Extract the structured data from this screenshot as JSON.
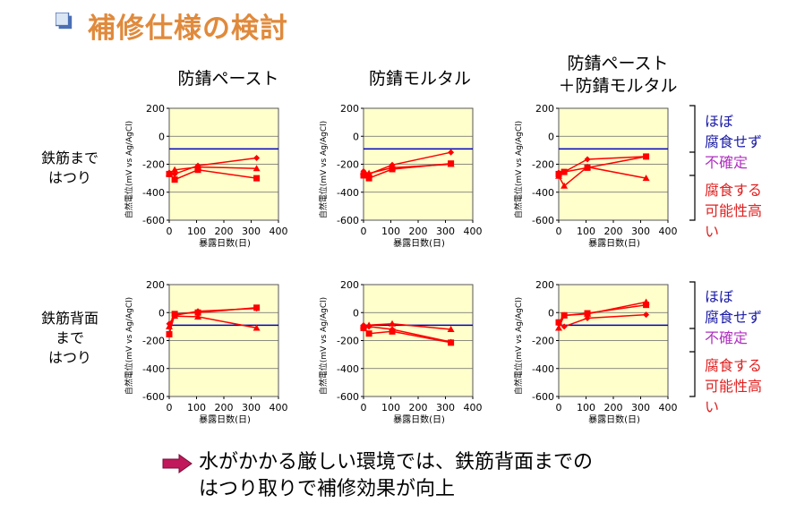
{
  "slide": {
    "title": "補修仕様の検討",
    "colors": {
      "title": "#e08a3c",
      "plot_bg": "#ffffcc",
      "threshold": "#0000c0",
      "series": "#ff0000",
      "legend_blue": "#1a1aa6",
      "legend_purple": "#b030c0",
      "legend_red": "#e02020",
      "arrow": "#c0185a"
    },
    "column_headers": [
      "防錆ペースト",
      "防錆モルタル",
      "防錆ペースト",
      "＋防錆モルタル"
    ],
    "row_headers": [
      {
        "lines": [
          "鉄筋まで",
          "はつり"
        ]
      },
      {
        "lines": [
          "鉄筋背面",
          "まで",
          "はつり"
        ]
      }
    ],
    "legend": {
      "no_corrosion": [
        "ほぼ",
        "腐食せず"
      ],
      "uncertain": "不確定",
      "corrosion": [
        "腐食する",
        "可能性高",
        "い"
      ]
    },
    "conclusion": [
      "水がかかる厳しい環境では、鉄筋背面までの",
      "はつり取りで補修効果が向上"
    ]
  },
  "chart_data": [
    {
      "type": "line",
      "row": "鉄筋まではつり",
      "column": "防錆ペースト",
      "xlabel": "暴露日数(日)",
      "ylabel": "自然電位(mV vs Ag/AgCl)",
      "xlim": [
        0,
        400
      ],
      "ylim": [
        -600,
        200
      ],
      "xticks": [
        "0",
        "100",
        "200",
        "300",
        "400"
      ],
      "yticks": [
        "200",
        "0",
        "-200",
        "-400",
        "-600"
      ],
      "threshold": -90,
      "series": [
        {
          "marker": "diamond",
          "x": [
            0,
            20,
            105,
            320
          ],
          "y": [
            -260,
            -270,
            -210,
            -155
          ]
        },
        {
          "marker": "triangle",
          "x": [
            0,
            20,
            105,
            320
          ],
          "y": [
            -265,
            -240,
            -220,
            -230
          ]
        },
        {
          "marker": "square",
          "x": [
            0,
            20,
            105,
            320
          ],
          "y": [
            -270,
            -310,
            -240,
            -300
          ]
        }
      ]
    },
    {
      "type": "line",
      "row": "鉄筋まではつり",
      "column": "防錆モルタル",
      "xlabel": "暴露日数(日)",
      "ylabel": "自然電位(mV vs Ag/AgCl)",
      "xlim": [
        0,
        400
      ],
      "ylim": [
        -600,
        200
      ],
      "xticks": [
        "0",
        "100",
        "200",
        "300",
        "400"
      ],
      "yticks": [
        "200",
        "0",
        "-200",
        "-400",
        "-600"
      ],
      "threshold": -90,
      "series": [
        {
          "marker": "diamond",
          "x": [
            0,
            20,
            105,
            320
          ],
          "y": [
            -250,
            -270,
            -205,
            -115
          ]
        },
        {
          "marker": "triangle",
          "x": [
            0,
            20,
            105,
            320
          ],
          "y": [
            -255,
            -265,
            -225,
            -200
          ]
        },
        {
          "marker": "square",
          "x": [
            0,
            20,
            105,
            320
          ],
          "y": [
            -280,
            -300,
            -235,
            -195
          ]
        }
      ]
    },
    {
      "type": "line",
      "row": "鉄筋まではつり",
      "column": "防錆ペースト＋防錆モルタル",
      "xlabel": "暴露日数(日)",
      "ylabel": "自然電位(mV vs Ag/AgCl)",
      "xlim": [
        0,
        400
      ],
      "ylim": [
        -600,
        200
      ],
      "xticks": [
        "0",
        "100",
        "200",
        "300",
        "400"
      ],
      "yticks": [
        "200",
        "0",
        "-200",
        "-400",
        "-600"
      ],
      "threshold": -90,
      "series": [
        {
          "marker": "diamond",
          "x": [
            0,
            20,
            105,
            320
          ],
          "y": [
            -260,
            -255,
            -165,
            -145
          ]
        },
        {
          "marker": "triangle",
          "x": [
            0,
            20,
            105,
            320
          ],
          "y": [
            -285,
            -355,
            -220,
            -300
          ]
        },
        {
          "marker": "square",
          "x": [
            0,
            20,
            105,
            320
          ],
          "y": [
            -270,
            -255,
            -225,
            -145
          ]
        }
      ]
    },
    {
      "type": "line",
      "row": "鉄筋背面まではつり",
      "column": "防錆ペースト",
      "xlabel": "暴露日数(日)",
      "ylabel": "自然電位(mV vs Ag/AgCl)",
      "xlim": [
        0,
        400
      ],
      "ylim": [
        -600,
        200
      ],
      "xticks": [
        "0",
        "100",
        "200",
        "300",
        "400"
      ],
      "yticks": [
        "200",
        "0",
        "-200",
        "-400",
        "-600"
      ],
      "threshold": -90,
      "series": [
        {
          "marker": "diamond",
          "x": [
            0,
            20,
            105,
            320
          ],
          "y": [
            -80,
            -20,
            10,
            30
          ]
        },
        {
          "marker": "triangle",
          "x": [
            0,
            20,
            105,
            320
          ],
          "y": [
            -100,
            -25,
            -30,
            -110
          ]
        },
        {
          "marker": "square",
          "x": [
            0,
            20,
            105,
            320
          ],
          "y": [
            -155,
            -10,
            0,
            35
          ]
        }
      ]
    },
    {
      "type": "line",
      "row": "鉄筋背面まではつり",
      "column": "防錆モルタル",
      "xlabel": "暴露日数(日)",
      "ylabel": "自然電位(mV vs Ag/AgCl)",
      "xlim": [
        0,
        400
      ],
      "ylim": [
        -600,
        200
      ],
      "xticks": [
        "0",
        "100",
        "200",
        "300",
        "400"
      ],
      "yticks": [
        "200",
        "0",
        "-200",
        "-400",
        "-600"
      ],
      "threshold": -90,
      "series": [
        {
          "marker": "diamond",
          "x": [
            0,
            20,
            105,
            320
          ],
          "y": [
            -90,
            -100,
            -120,
            -210
          ]
        },
        {
          "marker": "triangle",
          "x": [
            0,
            20,
            105,
            320
          ],
          "y": [
            -95,
            -90,
            -80,
            -120
          ]
        },
        {
          "marker": "square",
          "x": [
            0,
            20,
            105,
            320
          ],
          "y": [
            -110,
            -150,
            -135,
            -215
          ]
        }
      ]
    },
    {
      "type": "line",
      "row": "鉄筋背面まではつり",
      "column": "防錆ペースト＋防錆モルタル",
      "xlabel": "暴露日数(日)",
      "ylabel": "自然電位(mV vs Ag/AgCl)",
      "xlim": [
        0,
        400
      ],
      "ylim": [
        -600,
        200
      ],
      "xticks": [
        "0",
        "100",
        "200",
        "300",
        "400"
      ],
      "yticks": [
        "200",
        "0",
        "-200",
        "-400",
        "-600"
      ],
      "threshold": -90,
      "series": [
        {
          "marker": "diamond",
          "x": [
            0,
            20,
            105,
            320
          ],
          "y": [
            -80,
            -100,
            -40,
            -15
          ]
        },
        {
          "marker": "triangle",
          "x": [
            0,
            20,
            105,
            320
          ],
          "y": [
            -110,
            -20,
            -10,
            75
          ]
        },
        {
          "marker": "square",
          "x": [
            0,
            20,
            105,
            320
          ],
          "y": [
            -70,
            -20,
            -5,
            55
          ]
        }
      ]
    }
  ]
}
